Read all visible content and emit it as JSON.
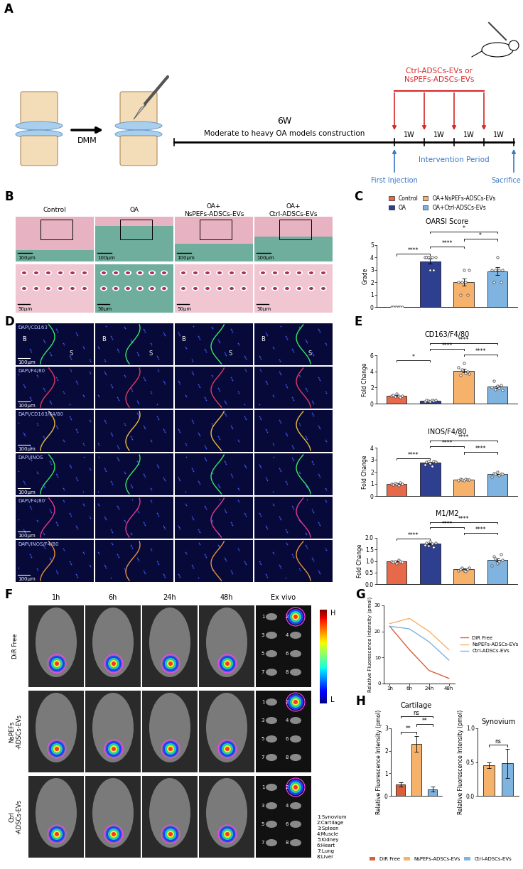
{
  "panel_labels": [
    "A",
    "B",
    "C",
    "D",
    "E",
    "F",
    "G",
    "H"
  ],
  "schematic": {
    "treatment": "Ctrl-ADSCs-EVs or\nNsPEFs-ADSCs-EVs",
    "surgery": "DMM",
    "model_period": "6W",
    "model_label": "Moderate to heavy OA models construction",
    "weeks": [
      "1W",
      "1W",
      "1W",
      "1W"
    ],
    "intervention": "Intervention Period",
    "first_injection": "First Injection",
    "sacrifice": "Sacrifice"
  },
  "histology": {
    "columns": [
      "Control",
      "OA",
      "OA+\nNsPEFs-ADSCs-EVs",
      "OA+\nCtrl-ADSCs-EVs"
    ],
    "scale_bars": [
      "100μm",
      "50μm"
    ]
  },
  "immunofluorescence": {
    "rows": [
      "DAPI/CD163",
      "DAPI/F4/80",
      "DAPI/CD163/F4/80",
      "DAPI/INOS",
      "DAPI/F4/80",
      "DAPI/INOS/F4/80"
    ],
    "regions": [
      "B",
      "S"
    ],
    "scale_bar": "100μm"
  },
  "group_legend": {
    "names": [
      "Control",
      "OA",
      "OA+NsPEFs-ADSCs-EVs",
      "OA+Ctrl-ADSCs-EVs"
    ],
    "colors": [
      "#e8684a",
      "#2f3f8f",
      "#f6b26b",
      "#7fb3e0"
    ]
  },
  "imaging": {
    "columns": [
      "1h",
      "6h",
      "24h",
      "48h",
      "Ex vivo"
    ],
    "rows": [
      "DiR Free",
      "NsPEFs\n-ADSCs-EVs",
      "Ctrl\n-ADSCs-EVs"
    ],
    "colorbar": [
      "H",
      "L"
    ],
    "organs": [
      "1:Synovium",
      "2:Cartilage",
      "3:Spleen",
      "4:Muscle",
      "5:Kidney",
      "6:Heart",
      "7:Lung",
      "8:Liver"
    ]
  },
  "biodist_legend": {
    "names": [
      "DiR Free",
      "NsPEFs-ADSCs-EVs",
      "Ctrl-ADSCs-EVs"
    ],
    "colors": [
      "#d9603b",
      "#f6b26b",
      "#7fb3e0"
    ]
  },
  "chart_data": [
    {
      "type": "bar",
      "title": "OARSI Score",
      "ylabel": "Grade",
      "categories": [
        null,
        null,
        null,
        null
      ],
      "values": [
        0,
        3.7,
        2.0,
        2.9
      ],
      "errors": [
        0,
        0.2,
        0.3,
        0.3
      ],
      "points": [
        [
          0,
          0,
          0,
          0,
          0,
          0,
          0
        ],
        [
          4,
          4,
          4,
          3,
          4,
          3,
          4
        ],
        [
          2,
          1,
          2,
          3,
          2,
          1,
          3
        ],
        [
          3,
          2,
          3,
          4,
          3,
          2,
          3
        ]
      ],
      "colors": [
        "#e8684a",
        "#2f3f8f",
        "#f6b26b",
        "#7fb3e0"
      ],
      "ylim": [
        0,
        5
      ],
      "yticks": [
        0,
        1,
        2,
        3,
        4,
        5
      ],
      "significance": [
        {
          "pair": [
            0,
            1
          ],
          "label": "****"
        },
        {
          "pair": [
            1,
            2
          ],
          "label": "****"
        },
        {
          "pair": [
            2,
            3
          ],
          "label": "*"
        },
        {
          "pair": [
            1,
            3
          ],
          "label": "*"
        }
      ]
    },
    {
      "type": "bar",
      "title": "CD163/F4/80",
      "ylabel": "Fold Change",
      "categories": [
        null,
        null,
        null,
        null
      ],
      "values": [
        1.0,
        0.35,
        4.1,
        2.1
      ],
      "errors": [
        0.05,
        0.02,
        0.2,
        0.15
      ],
      "points": [
        [
          1.0,
          1.1,
          0.9,
          1.2,
          1.0,
          0.8,
          1.0
        ],
        [
          0.3,
          0.4,
          0.35,
          0.3,
          0.4,
          0.35,
          0.4
        ],
        [
          4.5,
          3.5,
          4.2,
          5.0,
          3.8,
          4.0,
          3.7
        ],
        [
          2.0,
          2.8,
          1.8,
          2.2,
          1.9,
          2.3,
          1.7
        ]
      ],
      "colors": [
        "#e8684a",
        "#2f3f8f",
        "#f6b26b",
        "#7fb3e0"
      ],
      "ylim": [
        0,
        6
      ],
      "yticks": [
        0,
        2,
        4,
        6
      ],
      "significance": [
        {
          "pair": [
            0,
            1
          ],
          "label": "*"
        },
        {
          "pair": [
            2,
            3
          ],
          "label": "****"
        },
        {
          "pair": [
            1,
            2
          ],
          "label": "****"
        },
        {
          "pair": [
            1,
            3
          ],
          "label": "****"
        }
      ]
    },
    {
      "type": "bar",
      "title": "INOS/F4/80",
      "ylabel": "Fold Change",
      "categories": [
        null,
        null,
        null,
        null
      ],
      "values": [
        1.0,
        2.75,
        1.35,
        1.8
      ],
      "errors": [
        0.03,
        0.06,
        0.02,
        0.05
      ],
      "points": [
        [
          1.0,
          0.95,
          1.05,
          1.0,
          0.9,
          1.1,
          1.0
        ],
        [
          2.6,
          2.8,
          2.9,
          2.7,
          2.5,
          2.9,
          2.85
        ],
        [
          1.3,
          1.4,
          1.35,
          1.3,
          1.4,
          1.35,
          1.35
        ],
        [
          1.6,
          1.9,
          1.8,
          2.0,
          1.7,
          1.8,
          1.85
        ]
      ],
      "colors": [
        "#e8684a",
        "#2f3f8f",
        "#f6b26b",
        "#7fb3e0"
      ],
      "ylim": [
        0,
        4
      ],
      "yticks": [
        0,
        1,
        2,
        3,
        4
      ],
      "significance": [
        {
          "pair": [
            0,
            1
          ],
          "label": "****"
        },
        {
          "pair": [
            2,
            3
          ],
          "label": "****"
        },
        {
          "pair": [
            1,
            2
          ],
          "label": "****"
        },
        {
          "pair": [
            1,
            3
          ],
          "label": "****"
        }
      ]
    },
    {
      "type": "bar",
      "title": "M1/M2",
      "ylabel": "Fold Change",
      "categories": [
        null,
        null,
        null,
        null
      ],
      "values": [
        1.0,
        1.75,
        0.65,
        1.05
      ],
      "errors": [
        0.02,
        0.04,
        0.02,
        0.06
      ],
      "points": [
        [
          1.0,
          0.95,
          1.0,
          0.9,
          1.05,
          1.0,
          0.95
        ],
        [
          1.7,
          1.8,
          1.65,
          1.85,
          1.75,
          1.6,
          1.8
        ],
        [
          0.6,
          0.65,
          0.7,
          0.6,
          0.55,
          0.65,
          0.7
        ],
        [
          0.8,
          1.2,
          1.1,
          0.9,
          1.0,
          1.3,
          1.05
        ]
      ],
      "colors": [
        "#e8684a",
        "#2f3f8f",
        "#f6b26b",
        "#7fb3e0"
      ],
      "ylim": [
        0,
        2.0
      ],
      "yticks": [
        {
          "value": 0,
          "label": "0.0"
        },
        0.5,
        1.0,
        1.5,
        2.0
      ],
      "significance": [
        {
          "pair": [
            0,
            1
          ],
          "label": "****"
        },
        {
          "pair": [
            2,
            3
          ],
          "label": "****"
        },
        {
          "pair": [
            1,
            2
          ],
          "label": "****"
        },
        {
          "pair": [
            1,
            3
          ],
          "label": "****"
        }
      ]
    },
    {
      "type": "line",
      "ylabel": "Relative Fluorescence Intensity (pmol)",
      "categories": [
        "1h",
        "6h",
        "24h",
        "48h"
      ],
      "series": [
        {
          "name": "DiR Free",
          "color": "#d9603b",
          "values": [
            22,
            13,
            5,
            2
          ]
        },
        {
          "name": "NsPEFs-ADSCs-EVs",
          "color": "#f6b26b",
          "values": [
            23,
            25,
            20,
            13
          ]
        },
        {
          "name": "Ctrl-ADSCs-EVs",
          "color": "#7fb3e0",
          "values": [
            22,
            21,
            16,
            9
          ]
        }
      ],
      "ylim": [
        0,
        30
      ],
      "yticks": [
        0,
        10,
        20,
        30
      ],
      "legend": "right"
    },
    {
      "type": "bar",
      "title": "Cartilage",
      "ylabel": "Relative Fluorescence Intensity (pmol)",
      "categories": [
        null,
        null,
        null
      ],
      "values": [
        0.5,
        2.3,
        0.3
      ],
      "errors": [
        0.1,
        0.35,
        0.1
      ],
      "colors": [
        "#d9603b",
        "#f6b26b",
        "#7fb3e0"
      ],
      "ylim": [
        0,
        3
      ],
      "yticks": [
        0,
        1,
        2,
        3
      ],
      "significance": [
        {
          "pair": [
            0,
            1
          ],
          "label": "**"
        },
        {
          "pair": [
            1,
            2
          ],
          "label": "**"
        },
        {
          "pair": [
            0,
            2
          ],
          "label": "ns"
        }
      ]
    },
    {
      "type": "bar",
      "title": "Synovium",
      "ylabel": "Relative Fluorescence Intensity (pmol)",
      "categories": [
        null,
        null
      ],
      "values": [
        0.45,
        0.48
      ],
      "errors": [
        0.04,
        0.22
      ],
      "colors": [
        "#f6b26b",
        "#7fb3e0"
      ],
      "ylim": [
        0,
        1.0
      ],
      "yticks": [
        {
          "value": 0,
          "label": "0.0"
        },
        0.5,
        1.0
      ],
      "significance": [
        {
          "pair": [
            0,
            1
          ],
          "label": "ns"
        }
      ]
    }
  ]
}
